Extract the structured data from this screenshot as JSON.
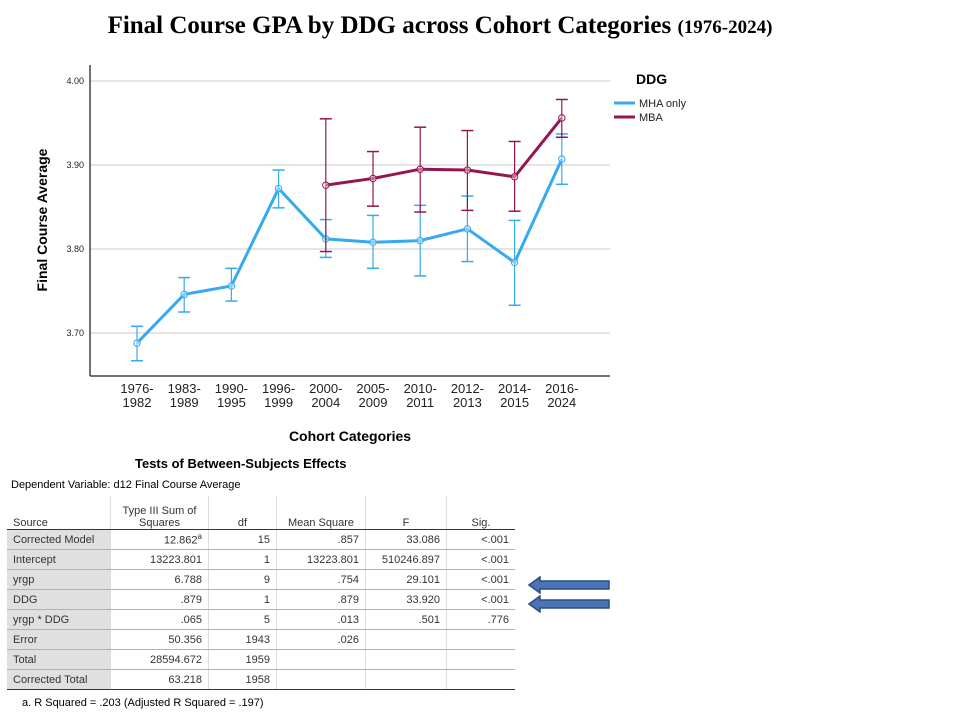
{
  "title": {
    "main": "Final Course GPA by DDG across Cohort Categories",
    "sub": "(1976-2024)"
  },
  "chart_data": {
    "type": "line",
    "xlabel": "Cohort Categories",
    "ylabel": "Final Course Average",
    "categories": [
      [
        "1976-",
        "1982"
      ],
      [
        "1983-",
        "1989"
      ],
      [
        "1990-",
        "1995"
      ],
      [
        "1996-",
        "1999"
      ],
      [
        "2000-",
        "2004"
      ],
      [
        "2005-",
        "2009"
      ],
      [
        "2010-",
        "2011"
      ],
      [
        "2012-",
        "2013"
      ],
      [
        "2014-",
        "2015"
      ],
      [
        "2016-",
        "2024"
      ]
    ],
    "yticks": [
      "3.70",
      "3.80",
      "3.90",
      "4.00"
    ],
    "ylim": [
      3.65,
      4.02
    ],
    "legend": {
      "title": "DDG",
      "placement": "top-right"
    },
    "series": [
      {
        "name": "MHA only",
        "color": "#36a9ef",
        "values": [
          3.688,
          3.746,
          3.756,
          3.872,
          3.812,
          3.808,
          3.81,
          3.824,
          3.784,
          3.907
        ],
        "upper": [
          3.708,
          3.766,
          3.777,
          3.894,
          3.835,
          3.84,
          3.852,
          3.863,
          3.834,
          3.937
        ],
        "lower": [
          3.667,
          3.725,
          3.738,
          3.849,
          3.79,
          3.777,
          3.768,
          3.785,
          3.733,
          3.877
        ]
      },
      {
        "name": "MBA",
        "color": "#941650",
        "values": [
          null,
          null,
          null,
          null,
          3.876,
          3.884,
          3.895,
          3.894,
          3.886,
          3.956
        ],
        "upper": [
          null,
          null,
          null,
          null,
          3.955,
          3.916,
          3.945,
          3.941,
          3.928,
          3.978
        ],
        "lower": [
          null,
          null,
          null,
          null,
          3.797,
          3.851,
          3.844,
          3.846,
          3.845,
          3.933
        ]
      }
    ]
  },
  "table": {
    "title": "Tests of Between-Subjects Effects",
    "dependent": "Dependent Variable:   d12 Final Course Average",
    "headers": [
      "Source",
      "Type III Sum of Squares",
      "df",
      "Mean Square",
      "F",
      "Sig."
    ],
    "rows": [
      [
        "Corrected Model",
        "12.862",
        "15",
        ".857",
        "33.086",
        "<.001"
      ],
      [
        "Intercept",
        "13223.801",
        "1",
        "13223.801",
        "510246.897",
        "<.001"
      ],
      [
        "yrgp",
        "6.788",
        "9",
        ".754",
        "29.101",
        "<.001"
      ],
      [
        "DDG",
        ".879",
        "1",
        ".879",
        "33.920",
        "<.001"
      ],
      [
        "yrgp * DDG",
        ".065",
        "5",
        ".013",
        ".501",
        ".776"
      ],
      [
        "Error",
        "50.356",
        "1943",
        ".026",
        "",
        ""
      ],
      [
        "Total",
        "28594.672",
        "1959",
        "",
        "",
        ""
      ],
      [
        "Corrected Total",
        "63.218",
        "1958",
        "",
        "",
        ""
      ]
    ],
    "superscript": "a",
    "footnote": "a. R Squared = .203 (Adjusted R Squared = .197)"
  }
}
